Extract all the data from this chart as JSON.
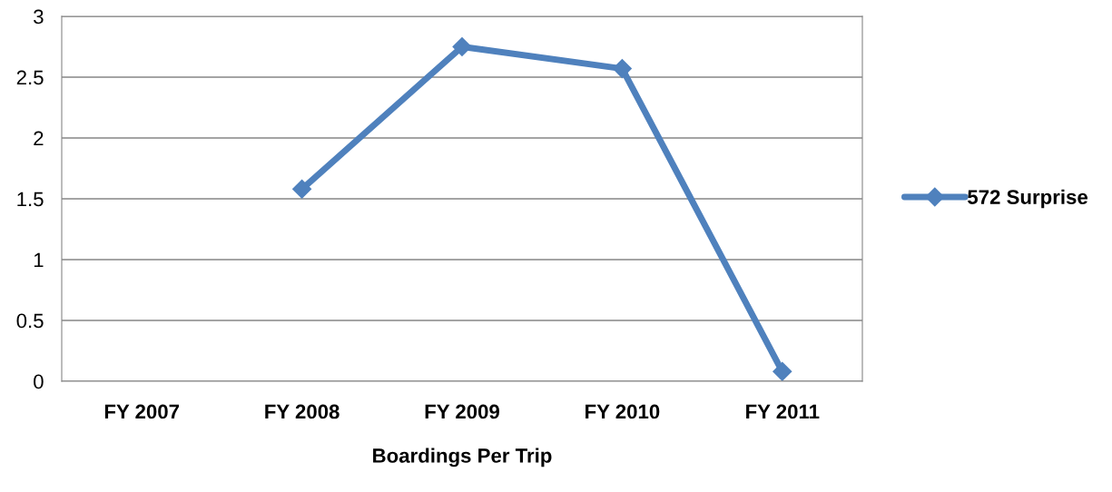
{
  "chart_data": {
    "type": "line",
    "xlabel": "Boardings Per Trip",
    "categories": [
      "FY 2007",
      "FY 2008",
      "FY 2009",
      "FY 2010",
      "FY 2011"
    ],
    "series": [
      {
        "name": "572 Surprise",
        "color": "#4f81bd",
        "values": [
          null,
          1.58,
          2.75,
          2.57,
          0.08
        ]
      }
    ],
    "ylim": [
      0,
      3
    ],
    "yticks": [
      0,
      0.5,
      1,
      1.5,
      2,
      2.5,
      3
    ],
    "grid": "y",
    "legend": "right",
    "marker": "diamond",
    "line_style": "solid"
  }
}
